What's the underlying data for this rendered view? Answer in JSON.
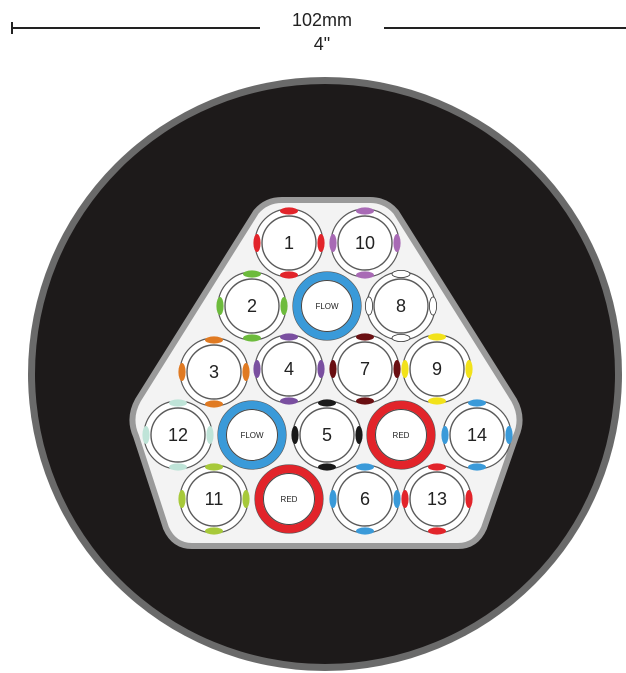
{
  "dimension": {
    "metric": "102mm",
    "imperial": "4\""
  },
  "colors": {
    "jacket_outer": "#6a6a6a",
    "jacket": "#1d1a1a",
    "core_fill": "#f3f3f3",
    "core_border": "#9a9a9a",
    "cell_stroke": "#5a5a5a",
    "flow": "#3a9ad9",
    "red_ring": "#e2242a"
  },
  "cells": [
    {
      "id": 1,
      "label": "1",
      "color": "#e2242a"
    },
    {
      "id": 10,
      "label": "10",
      "color": "#a86ab5"
    },
    {
      "id": 2,
      "label": "2",
      "color": "#6dbb3c"
    },
    {
      "id": 8,
      "label": "8",
      "color": "#ffffff"
    },
    {
      "id": 3,
      "label": "3",
      "color": "#e07a22"
    },
    {
      "id": 4,
      "label": "4",
      "color": "#7a4fa0"
    },
    {
      "id": 7,
      "label": "7",
      "color": "#6a0f12"
    },
    {
      "id": 9,
      "label": "9",
      "color": "#f2e21a"
    },
    {
      "id": 12,
      "label": "12",
      "color": "#bfe4d8"
    },
    {
      "id": 5,
      "label": "5",
      "color": "#1a1a1a"
    },
    {
      "id": 14,
      "label": "14",
      "color": "#3a9ad9"
    },
    {
      "id": 11,
      "label": "11",
      "color": "#a7c93a"
    },
    {
      "id": 6,
      "label": "6",
      "color": "#3a9ad9"
    },
    {
      "id": 13,
      "label": "13",
      "color": "#e2242a"
    }
  ],
  "special_tubes": [
    {
      "key": "flow-a",
      "label": "FLOW",
      "kind": "flow"
    },
    {
      "key": "flow-b",
      "label": "FLOW",
      "kind": "flow"
    },
    {
      "key": "red-a",
      "label": "RED",
      "kind": "red"
    },
    {
      "key": "red-b",
      "label": "RED",
      "kind": "red"
    }
  ]
}
